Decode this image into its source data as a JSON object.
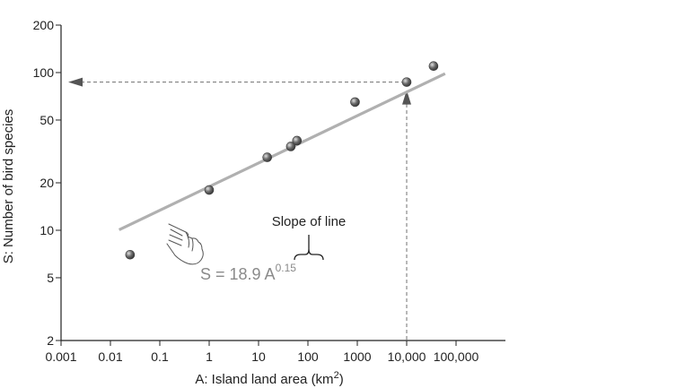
{
  "chart_data": {
    "type": "scatter",
    "x_scale": "log",
    "y_scale": "log",
    "xlabel": "A: Island land area (km",
    "xlabel_sup": "2",
    "xlabel_end": ")",
    "ylabel": "S: Number of bird species",
    "xlim": [
      0.001,
      100000
    ],
    "ylim": [
      2,
      200
    ],
    "x_ticks": [
      {
        "value": 0.001,
        "label": "0.001"
      },
      {
        "value": 0.01,
        "label": "0.01"
      },
      {
        "value": 0.1,
        "label": "0.1"
      },
      {
        "value": 1,
        "label": "1"
      },
      {
        "value": 10,
        "label": "10"
      },
      {
        "value": 100,
        "label": "100"
      },
      {
        "value": 1000,
        "label": "1000"
      },
      {
        "value": 10000,
        "label": "10,000"
      },
      {
        "value": 100000,
        "label": "100,000"
      }
    ],
    "y_ticks": [
      {
        "value": 2,
        "label": "2"
      },
      {
        "value": 5,
        "label": "5"
      },
      {
        "value": 10,
        "label": "10"
      },
      {
        "value": 20,
        "label": "20"
      },
      {
        "value": 50,
        "label": "50"
      },
      {
        "value": 100,
        "label": "100"
      },
      {
        "value": 200,
        "label": "200"
      }
    ],
    "series": [
      {
        "points": [
          {
            "x": 0.025,
            "y": 7
          },
          {
            "x": 1,
            "y": 18
          },
          {
            "x": 15,
            "y": 29
          },
          {
            "x": 45,
            "y": 34
          },
          {
            "x": 60,
            "y": 37
          },
          {
            "x": 900,
            "y": 65
          },
          {
            "x": 10000,
            "y": 87
          },
          {
            "x": 35000,
            "y": 110
          }
        ]
      }
    ],
    "fit_line": {
      "a": 18.9,
      "b": 0.15,
      "x_range": [
        0.015,
        60000
      ]
    },
    "equation_text": "S = 18.9 A",
    "equation_exponent": "0.15",
    "slope_annotation": "Slope of line",
    "readout": {
      "x": 10000,
      "y": 87
    },
    "grid": false,
    "colors": {
      "line": "#b0b0b0",
      "points": "#6a6a6a",
      "guides": "#707070",
      "text": "#222222",
      "equation": "#8a8a8a"
    }
  }
}
